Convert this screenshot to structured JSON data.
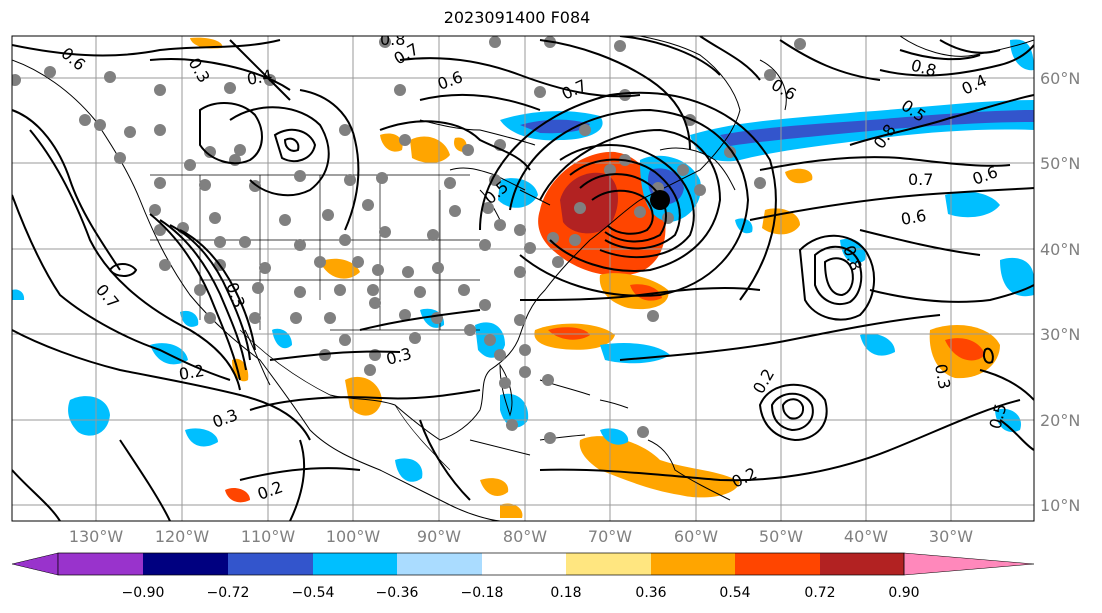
{
  "title": "2023091400 F084",
  "map": {
    "lon_labels": [
      "130°W",
      "120°W",
      "110°W",
      "100°W",
      "90°W",
      "80°W",
      "70°W",
      "60°W",
      "50°W",
      "40°W",
      "30°W"
    ],
    "lat_labels": [
      "60°N",
      "50°N",
      "40°N",
      "30°N",
      "20°N",
      "10°N"
    ],
    "contour_labels": [
      "0.6",
      "0.4",
      "0.8",
      "0.7",
      "0.3",
      "0.5",
      "0.2",
      "0.3",
      "0.6",
      "0.7",
      "0.8",
      "0.6",
      "0.4",
      "0.5",
      "0.8",
      "0.7",
      "0.6",
      "0.6",
      "0.8",
      "0.3",
      "0.2",
      "0.3",
      "0.2",
      "0.2",
      "0.5",
      "0.3",
      "0.7"
    ]
  },
  "colorbar": {
    "ticks": [
      "−0.90",
      "−0.72",
      "−0.54",
      "−0.36",
      "−0.18",
      "0.18",
      "0.36",
      "0.54",
      "0.72",
      "0.90"
    ],
    "colors": [
      "#9933cc",
      "#000080",
      "#3355cc",
      "#00bfff",
      "#aadcff",
      "#ffffff",
      "#ffe680",
      "#ffa500",
      "#ff4500",
      "#b22222",
      "#ff88bb"
    ]
  }
}
